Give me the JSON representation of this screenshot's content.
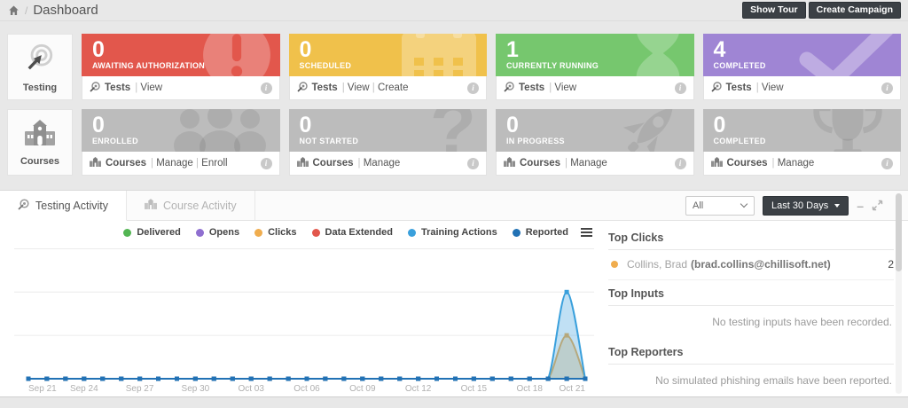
{
  "breadcrumb": {
    "page_title": "Dashboard"
  },
  "topbar": {
    "show_tour": "Show Tour",
    "create_campaign": "Create Campaign"
  },
  "side_tiles": {
    "testing": "Testing",
    "courses": "Courses"
  },
  "cards": [
    {
      "value": "0",
      "label": "AWAITING AUTHORIZATION",
      "color": "#e2574c",
      "icon": "exclamation-circle",
      "entity": "Tests",
      "links": [
        "View"
      ]
    },
    {
      "value": "0",
      "label": "SCHEDULED",
      "color": "#f0c14b",
      "icon": "calendar",
      "entity": "Tests",
      "links": [
        "View",
        "Create"
      ]
    },
    {
      "value": "1",
      "label": "CURRENTLY RUNNING",
      "color": "#76c76e",
      "icon": "hourglass",
      "entity": "Tests",
      "links": [
        "View"
      ]
    },
    {
      "value": "4",
      "label": "COMPLETED",
      "color": "#9f85d4",
      "icon": "checkmark",
      "entity": "Tests",
      "links": [
        "View"
      ]
    },
    {
      "value": "0",
      "label": "ENROLLED",
      "color": "#bcbcbc",
      "icon": "people-group",
      "entity": "Courses",
      "links": [
        "Manage",
        "Enroll"
      ]
    },
    {
      "value": "0",
      "label": "NOT STARTED",
      "color": "#bcbcbc",
      "icon": "question-mark",
      "entity": "Courses",
      "links": [
        "Manage"
      ]
    },
    {
      "value": "0",
      "label": "IN PROGRESS",
      "color": "#bcbcbc",
      "icon": "rocket",
      "entity": "Courses",
      "links": [
        "Manage"
      ]
    },
    {
      "value": "0",
      "label": "COMPLETED",
      "color": "#bcbcbc",
      "icon": "trophy",
      "entity": "Courses",
      "links": [
        "Manage"
      ]
    }
  ],
  "panel": {
    "tabs": [
      {
        "label": "Testing Activity",
        "active": true
      },
      {
        "label": "Course Activity",
        "active": false
      }
    ],
    "filter_select_value": "All",
    "range_button_label": "Last 30 Days"
  },
  "chart_data": {
    "type": "area",
    "title": "",
    "xlabel": "",
    "ylabel": "",
    "ylim": [
      0,
      3.05
    ],
    "gridlines": [
      1,
      2,
      3
    ],
    "grid": true,
    "legend_position": "top-right",
    "tick_every": 3,
    "x": [
      "Sep 21",
      "Sep 22",
      "Sep 23",
      "Sep 24",
      "Sep 25",
      "Sep 26",
      "Sep 27",
      "Sep 28",
      "Sep 29",
      "Sep 30",
      "Oct 01",
      "Oct 02",
      "Oct 03",
      "Oct 04",
      "Oct 05",
      "Oct 06",
      "Oct 07",
      "Oct 08",
      "Oct 09",
      "Oct 10",
      "Oct 11",
      "Oct 12",
      "Oct 13",
      "Oct 14",
      "Oct 15",
      "Oct 16",
      "Oct 17",
      "Oct 18",
      "Oct 19",
      "Oct 20",
      "Oct 21"
    ],
    "series": [
      {
        "name": "Delivered",
        "color": "#53b553",
        "values": [
          0,
          0,
          0,
          0,
          0,
          0,
          0,
          0,
          0,
          0,
          0,
          0,
          0,
          0,
          0,
          0,
          0,
          0,
          0,
          0,
          0,
          0,
          0,
          0,
          0,
          0,
          0,
          0,
          0,
          0,
          0
        ]
      },
      {
        "name": "Opens",
        "color": "#8f6fd0",
        "values": [
          0,
          0,
          0,
          0,
          0,
          0,
          0,
          0,
          0,
          0,
          0,
          0,
          0,
          0,
          0,
          0,
          0,
          0,
          0,
          0,
          0,
          0,
          0,
          0,
          0,
          0,
          0,
          0,
          0,
          0,
          0
        ]
      },
      {
        "name": "Clicks",
        "color": "#f0ad4e",
        "values": [
          0,
          0,
          0,
          0,
          0,
          0,
          0,
          0,
          0,
          0,
          0,
          0,
          0,
          0,
          0,
          0,
          0,
          0,
          0,
          0,
          0,
          0,
          0,
          0,
          0,
          0,
          0,
          0,
          0,
          1,
          0
        ]
      },
      {
        "name": "Data Extended",
        "color": "#e2574c",
        "values": [
          0,
          0,
          0,
          0,
          0,
          0,
          0,
          0,
          0,
          0,
          0,
          0,
          0,
          0,
          0,
          0,
          0,
          0,
          0,
          0,
          0,
          0,
          0,
          0,
          0,
          0,
          0,
          0,
          0,
          0,
          0
        ]
      },
      {
        "name": "Training Actions",
        "color": "#3aa0dc",
        "values": [
          0,
          0,
          0,
          0,
          0,
          0,
          0,
          0,
          0,
          0,
          0,
          0,
          0,
          0,
          0,
          0,
          0,
          0,
          0,
          0,
          0,
          0,
          0,
          0,
          0,
          0,
          0,
          0,
          0,
          2,
          0
        ]
      },
      {
        "name": "Reported",
        "color": "#2272b5",
        "values": [
          0,
          0,
          0,
          0,
          0,
          0,
          0,
          0,
          0,
          0,
          0,
          0,
          0,
          0,
          0,
          0,
          0,
          0,
          0,
          0,
          0,
          0,
          0,
          0,
          0,
          0,
          0,
          0,
          0,
          0,
          0
        ]
      }
    ]
  },
  "top_lists": {
    "clicks": {
      "title": "Top Clicks",
      "items": [
        {
          "name": "Collins, Brad",
          "email": "(brad.collins@chillisoft.net)",
          "count": 2,
          "dot_color": "#f0ad4e"
        }
      ]
    },
    "inputs": {
      "title": "Top Inputs",
      "empty": "No testing inputs have been recorded."
    },
    "reporters": {
      "title": "Top Reporters",
      "empty": "No simulated phishing emails have been reported."
    }
  }
}
